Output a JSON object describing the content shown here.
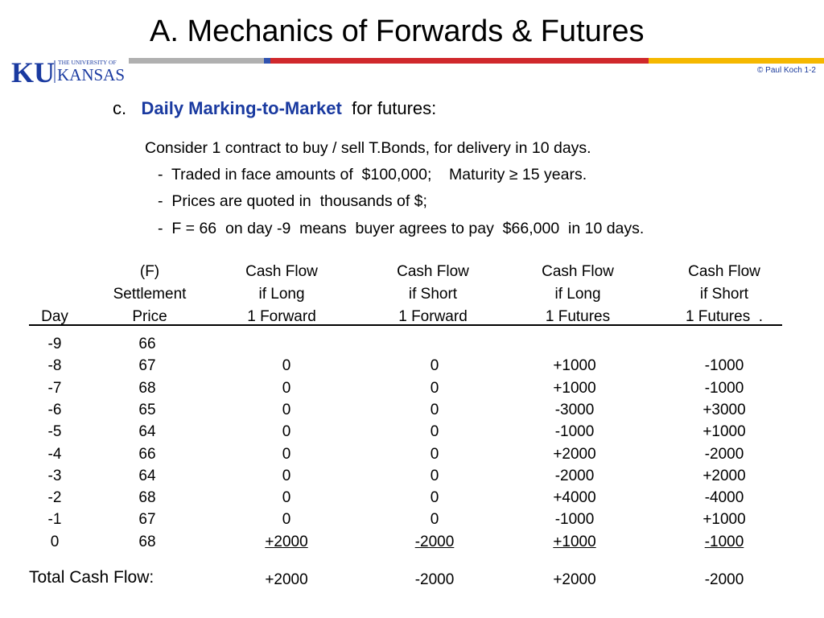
{
  "title": "A.  Mechanics of Forwards & Futures",
  "logo": {
    "mark": "KU",
    "line1": "THE UNIVERSITY OF",
    "line2": "KANSAS"
  },
  "credit": "© Paul Koch 1-2",
  "colors": {
    "accent_blue": "#1a3aa0",
    "rule_gray": "#b0b0b0",
    "rule_blue": "#2f52b0",
    "rule_red": "#d0282c",
    "rule_yellow": "#f5b800"
  },
  "section": {
    "letter": "c.",
    "highlight": "Daily  Marking-to-Market",
    "rest": "  for futures:"
  },
  "intro": [
    "Consider 1 contract to buy / sell  T.Bonds,  for delivery in 10 days.",
    "-  Traded in face amounts of  $100,000;    Maturity ≥ 15 years.",
    "-  Prices are quoted in  thousands of $;",
    "-  F = 66  on day -9  means  buyer agrees to pay  $66,000  in 10 days."
  ],
  "table": {
    "header_lines": [
      [
        "",
        "(F)",
        "Cash Flow",
        "Cash Flow",
        "Cash Flow",
        "Cash Flow"
      ],
      [
        "",
        "Settlement",
        "if Long",
        "if Short",
        "if Long",
        "if Short"
      ],
      [
        "Day",
        "Price",
        "1 Forward",
        "1 Forward",
        "1 Futures",
        "1 Futures  ."
      ]
    ],
    "rows": [
      [
        "-9",
        "66",
        "",
        "",
        "",
        ""
      ],
      [
        "-8",
        "67",
        "0",
        "0",
        "+1000",
        "-1000"
      ],
      [
        "-7",
        "68",
        "0",
        "0",
        "+1000",
        "-1000"
      ],
      [
        "-6",
        "65",
        "0",
        "0",
        "-3000",
        "+3000"
      ],
      [
        "-5",
        "64",
        "0",
        "0",
        "-1000",
        "+1000"
      ],
      [
        "-4",
        "66",
        "0",
        "0",
        "+2000",
        "-2000"
      ],
      [
        "-3",
        "64",
        "0",
        "0",
        "-2000",
        "+2000"
      ],
      [
        "-2",
        "68",
        "0",
        "0",
        "+4000",
        "-4000"
      ],
      [
        "-1",
        "67",
        "0",
        "0",
        "-1000",
        "+1000"
      ],
      [
        "0",
        "68",
        "+2000",
        "-2000",
        "+1000",
        "-1000"
      ]
    ],
    "total_label": "Total Cash Flow:",
    "totals": [
      "+2000",
      "-2000",
      "+2000",
      "-2000"
    ]
  }
}
